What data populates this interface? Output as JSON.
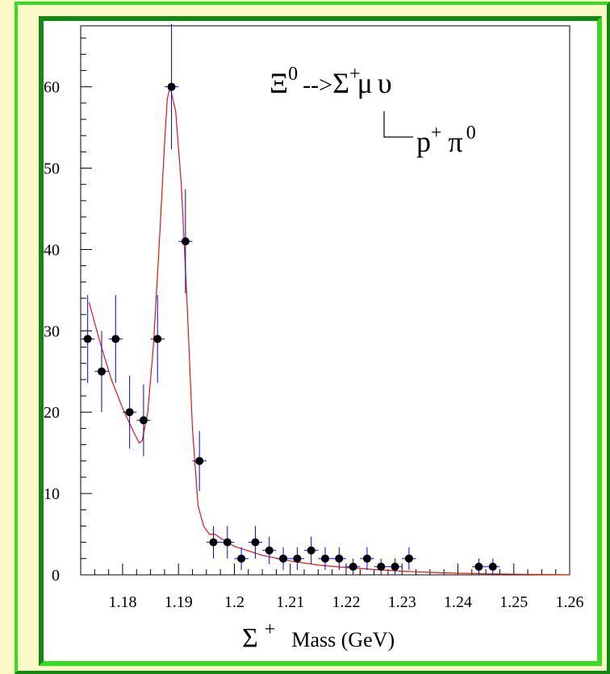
{
  "chart_data": {
    "type": "scatter",
    "title": "",
    "annotation": {
      "decay": {
        "xi": "Ξ",
        "xi_sup": "0",
        "arrow": "-->",
        "sigma": "Σ",
        "sigma_sup": "+",
        "mu": "μ",
        "nu": "υ"
      },
      "subdecay": {
        "p": "p",
        "p_sup": "+",
        "pi": "π",
        "pi_sup": "0"
      }
    },
    "xlabel": {
      "symbol": "Σ",
      "sup": "+",
      "text": "Mass (GeV)"
    },
    "ylabel": "",
    "xlim": [
      1.1725,
      1.26
    ],
    "ylim": [
      0,
      67.5
    ],
    "x_ticks": [
      "1.18",
      "1.19",
      "1.2",
      "1.21",
      "1.22",
      "1.23",
      "1.24",
      "1.25",
      "1.26"
    ],
    "y_ticks": [
      "0",
      "10",
      "20",
      "30",
      "40",
      "50",
      "60"
    ],
    "grid": false,
    "series": [
      {
        "type": "errorbar",
        "color": "#0000ff",
        "x_halfwidth": 0.00125,
        "points": [
          {
            "x": 1.17375,
            "y": 29,
            "err": 5.4
          },
          {
            "x": 1.17625,
            "y": 25,
            "err": 5.0
          },
          {
            "x": 1.17875,
            "y": 29,
            "err": 5.4
          },
          {
            "x": 1.18125,
            "y": 20,
            "err": 4.5
          },
          {
            "x": 1.18375,
            "y": 19,
            "err": 4.4
          },
          {
            "x": 1.18625,
            "y": 29,
            "err": 5.4
          },
          {
            "x": 1.18875,
            "y": 60,
            "err": 7.7
          },
          {
            "x": 1.19125,
            "y": 41,
            "err": 6.4
          },
          {
            "x": 1.19375,
            "y": 14,
            "err": 3.7
          },
          {
            "x": 1.19625,
            "y": 4,
            "err": 2.0
          },
          {
            "x": 1.19875,
            "y": 4,
            "err": 2.0
          },
          {
            "x": 1.20125,
            "y": 2,
            "err": 1.4
          },
          {
            "x": 1.20375,
            "y": 4,
            "err": 2.0
          },
          {
            "x": 1.20625,
            "y": 3,
            "err": 1.7
          },
          {
            "x": 1.20875,
            "y": 2,
            "err": 1.4
          },
          {
            "x": 1.21125,
            "y": 2,
            "err": 1.4
          },
          {
            "x": 1.21375,
            "y": 3,
            "err": 1.7
          },
          {
            "x": 1.21625,
            "y": 2,
            "err": 1.4
          },
          {
            "x": 1.21875,
            "y": 2,
            "err": 1.4
          },
          {
            "x": 1.22125,
            "y": 1,
            "err": 1.0
          },
          {
            "x": 1.22375,
            "y": 2,
            "err": 1.4
          },
          {
            "x": 1.22625,
            "y": 1,
            "err": 1.0
          },
          {
            "x": 1.22875,
            "y": 1,
            "err": 1.0
          },
          {
            "x": 1.23125,
            "y": 2,
            "err": 1.4
          },
          {
            "x": 1.24375,
            "y": 1,
            "err": 1.0
          },
          {
            "x": 1.24625,
            "y": 1,
            "err": 1.0
          }
        ]
      },
      {
        "type": "line",
        "color": "#ee1111",
        "x": [
          1.174,
          1.176,
          1.178,
          1.18,
          1.182,
          1.183,
          1.1835,
          1.1845,
          1.1855,
          1.1865,
          1.1875,
          1.188,
          1.1885,
          1.1895,
          1.1905,
          1.1915,
          1.1925,
          1.1935,
          1.1945,
          1.1955,
          1.1965,
          1.198,
          1.2,
          1.205,
          1.21,
          1.215,
          1.22,
          1.225,
          1.23,
          1.235,
          1.24,
          1.245,
          1.25,
          1.255,
          1.26
        ],
        "y": [
          33.5,
          28.5,
          24.0,
          20.5,
          17.5,
          16.2,
          16.5,
          20.0,
          28.0,
          40.0,
          53.0,
          58.5,
          60.0,
          57.0,
          48.0,
          34.0,
          18.0,
          8.5,
          6.0,
          5.0,
          5.0,
          4.3,
          3.5,
          2.4,
          1.7,
          1.2,
          0.9,
          0.65,
          0.45,
          0.3,
          0.2,
          0.13,
          0.08,
          0.04,
          0.02
        ]
      }
    ]
  }
}
